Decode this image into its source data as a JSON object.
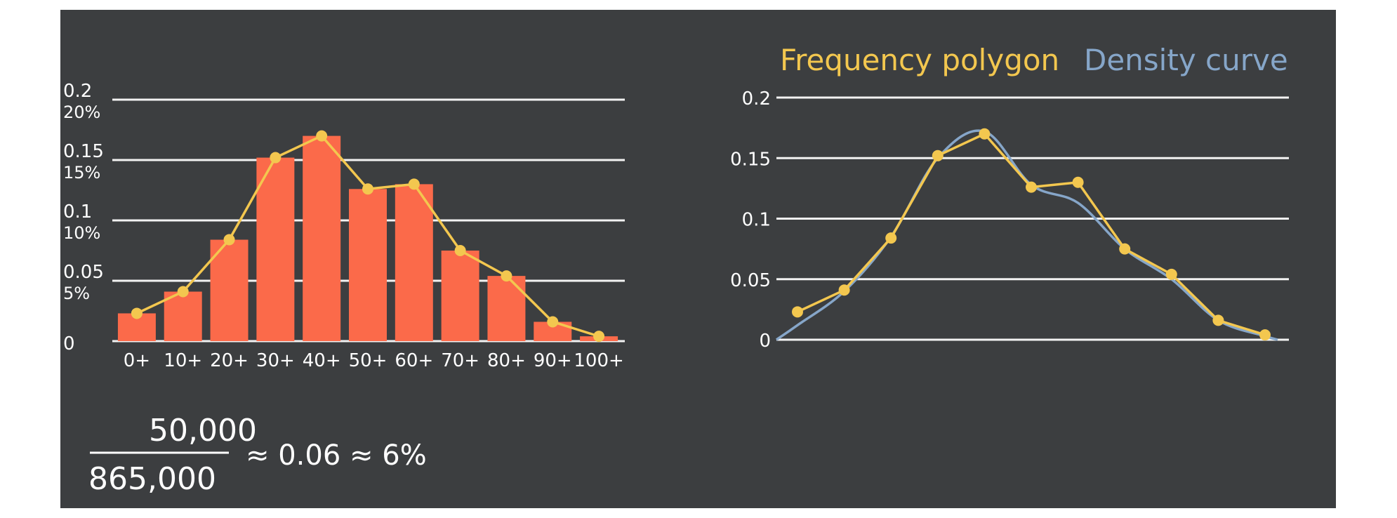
{
  "colors": {
    "board": "#3c3e40",
    "gridline": "#f2f2f2",
    "bar": "#fb6a4a",
    "polygon": "#f3c74f",
    "density": "#86a6c9",
    "text": "#ffffff"
  },
  "chart_data": [
    {
      "type": "bar",
      "categories": [
        "0+",
        "10+",
        "20+",
        "30+",
        "40+",
        "50+",
        "60+",
        "70+",
        "80+",
        "90+",
        "100+"
      ],
      "values": [
        0.023,
        0.041,
        0.084,
        0.152,
        0.17,
        0.126,
        0.13,
        0.075,
        0.054,
        0.016,
        0.004
      ],
      "overlay": {
        "type": "line",
        "values": [
          0.023,
          0.041,
          0.084,
          0.152,
          0.17,
          0.126,
          0.13,
          0.075,
          0.054,
          0.016,
          0.004
        ]
      },
      "yticks": [
        {
          "value": 0,
          "label": "0",
          "percent": ""
        },
        {
          "value": 0.05,
          "label": "0.05",
          "percent": "5%"
        },
        {
          "value": 0.1,
          "label": "0.1",
          "percent": "10%"
        },
        {
          "value": 0.15,
          "label": "0.15",
          "percent": "15%"
        },
        {
          "value": 0.2,
          "label": "0.2",
          "percent": "20%"
        }
      ],
      "ylim": [
        0,
        0.2
      ],
      "grid": true
    },
    {
      "type": "line",
      "series": [
        {
          "name": "Frequency polygon",
          "values": [
            0.023,
            0.041,
            0.084,
            0.152,
            0.17,
            0.126,
            0.13,
            0.075,
            0.054,
            0.016,
            0.004
          ]
        },
        {
          "name": "Density curve",
          "values": [
            0.012,
            0.04,
            0.085,
            0.15,
            0.172,
            0.128,
            0.113,
            0.075,
            0.05,
            0.016,
            0.003
          ]
        }
      ],
      "yticks": [
        {
          "value": 0,
          "label": "0"
        },
        {
          "value": 0.05,
          "label": "0.05"
        },
        {
          "value": 0.1,
          "label": "0.1"
        },
        {
          "value": 0.15,
          "label": "0.15"
        },
        {
          "value": 0.2,
          "label": "0.2"
        }
      ],
      "ylim": [
        0,
        0.2
      ],
      "grid": true
    }
  ],
  "annotation": {
    "numerator": "50,000",
    "denominator": "865,000",
    "result": "≈ 0.06 ≈ 6%"
  }
}
